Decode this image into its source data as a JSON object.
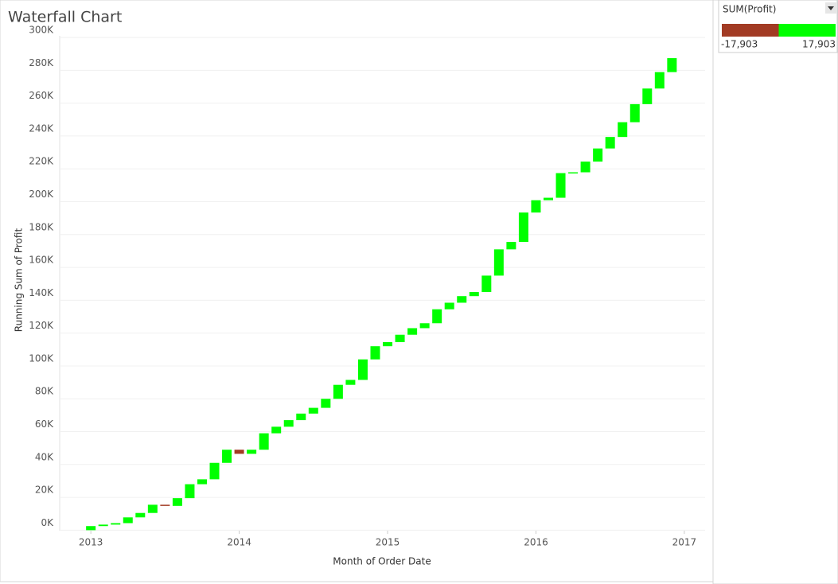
{
  "chart_data": {
    "type": "waterfall",
    "title": "Waterfall Chart",
    "x_label": "Month of Order Date",
    "y_label": "Running Sum of Profit",
    "x": [
      "2013-01",
      "2013-02",
      "2013-03",
      "2013-04",
      "2013-05",
      "2013-06",
      "2013-07",
      "2013-08",
      "2013-09",
      "2013-10",
      "2013-11",
      "2013-12",
      "2014-01",
      "2014-02",
      "2014-03",
      "2014-04",
      "2014-05",
      "2014-06",
      "2014-07",
      "2014-08",
      "2014-09",
      "2014-10",
      "2014-11",
      "2014-12",
      "2015-01",
      "2015-02",
      "2015-03",
      "2015-04",
      "2015-05",
      "2015-06",
      "2015-07",
      "2015-08",
      "2015-09",
      "2015-10",
      "2015-11",
      "2015-12",
      "2016-01",
      "2016-02",
      "2016-03",
      "2016-04",
      "2016-05",
      "2016-06",
      "2016-07",
      "2016-08",
      "2016-09",
      "2016-10",
      "2016-11",
      "2016-12"
    ],
    "values": [
      2500,
      900,
      900,
      3500,
      2700,
      5000,
      -700,
      4700,
      8500,
      3000,
      10000,
      8000,
      -2500,
      2500,
      10000,
      4000,
      4000,
      4000,
      3500,
      5500,
      8500,
      3000,
      12500,
      8000,
      2500,
      4500,
      4000,
      3000,
      8500,
      4000,
      4000,
      2500,
      10000,
      16000,
      4500,
      17903,
      7500,
      1500,
      15000,
      500,
      6500,
      8000,
      7000,
      9000,
      11000,
      9500,
      10000,
      8500
    ],
    "positive_color": "#00ff00",
    "negative_color": "#a23b24",
    "xlim": [
      2012.79,
      2017.14
    ],
    "xticks": [
      2013,
      2014,
      2015,
      2016,
      2017
    ],
    "ylim": [
      -300,
      301000
    ],
    "yticks": [
      {
        "value": 0,
        "label": "0K"
      },
      {
        "value": 20000,
        "label": "20K"
      },
      {
        "value": 40000,
        "label": "40K"
      },
      {
        "value": 60000,
        "label": "60K"
      },
      {
        "value": 80000,
        "label": "80K"
      },
      {
        "value": 100000,
        "label": "100K"
      },
      {
        "value": 120000,
        "label": "120K"
      },
      {
        "value": 140000,
        "label": "140K"
      },
      {
        "value": 160000,
        "label": "160K"
      },
      {
        "value": 180000,
        "label": "180K"
      },
      {
        "value": 200000,
        "label": "200K"
      },
      {
        "value": 220000,
        "label": "220K"
      },
      {
        "value": 240000,
        "label": "240K"
      },
      {
        "value": 260000,
        "label": "260K"
      },
      {
        "value": 280000,
        "label": "280K"
      },
      {
        "value": 300000,
        "label": "300K"
      }
    ],
    "grid": true,
    "color_legend": {
      "title": "SUM(Profit)",
      "min": {
        "value": -17903,
        "label": "-17,903"
      },
      "max": {
        "value": 17903,
        "label": "17,903"
      }
    }
  }
}
